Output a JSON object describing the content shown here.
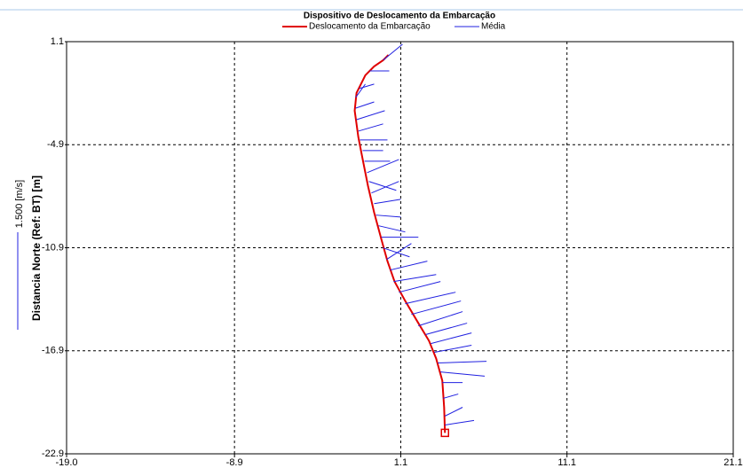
{
  "chart_data": {
    "type": "line",
    "title": "Dispositivo de Deslocamento da Embarcação",
    "y_label": "Distancia Norte (Ref: BT) [m]",
    "scale_label": "1.500 [m/s]",
    "xlim": [
      -19.0,
      21.1
    ],
    "xticks": [
      {
        "value": -19,
        "label": "-19.0"
      },
      -8.9,
      1.1,
      11.1,
      21.1
    ],
    "ylim": [
      -22.9,
      1.1
    ],
    "yticks": [
      1.1,
      -4.9,
      -10.9,
      -16.9,
      -22.9
    ],
    "grid": true,
    "series": [
      {
        "name": "Deslocamento da Embarcação",
        "color": "#e00000",
        "x": [
          3.76,
          3.71,
          3.6,
          3.23,
          2.8,
          2.16,
          1.37,
          0.73,
          0.3,
          -0.07,
          -0.5,
          -0.87,
          -1.19,
          -1.45,
          -1.67,
          -1.56,
          -1.03,
          -0.5,
          0.04,
          0.36
        ],
        "y": [
          -21.68,
          -20.19,
          -18.64,
          -17.35,
          -16.32,
          -15.29,
          -14.0,
          -12.87,
          -11.68,
          -10.39,
          -8.85,
          -7.3,
          -5.75,
          -4.46,
          -2.92,
          -1.89,
          -0.86,
          -0.34,
          0.02,
          0.33
        ]
      },
      {
        "name": "Média",
        "color": "#2020e0",
        "x": [
          3.76,
          3.76,
          3.65,
          3.6,
          3.49,
          3.33,
          3.12,
          2.91,
          2.59,
          2.16,
          1.74,
          1.37,
          0.99,
          0.67,
          0.46,
          0.25,
          0.04,
          -0.07,
          -0.23,
          -0.39,
          -0.5,
          -0.66,
          -0.81,
          -0.92,
          -1.08,
          -1.19,
          -1.35,
          -1.45,
          -1.56,
          -1.61,
          -1.61,
          -1.4,
          -0.76,
          0.04
        ],
        "y": [
          -21.22,
          -20.7,
          -19.67,
          -18.75,
          -18.13,
          -17.61,
          -16.99,
          -16.48,
          -15.96,
          -15.45,
          -14.78,
          -14.16,
          -13.49,
          -12.87,
          -12.2,
          -11.58,
          -10.91,
          -10.29,
          -9.62,
          -9.0,
          -8.33,
          -7.71,
          -7.04,
          -6.53,
          -5.86,
          -5.24,
          -4.62,
          -4.11,
          -3.44,
          -2.77,
          -2.15,
          -1.63,
          -0.6,
          0.02
        ],
        "x_end": [
          5.51,
          4.82,
          4.56,
          4.82,
          6.15,
          6.26,
          5.36,
          5.36,
          5.09,
          4.82,
          4.72,
          4.4,
          3.49,
          3.23,
          2.7,
          1.74,
          1.63,
          2.16,
          1.37,
          1.1,
          1.1,
          0.99,
          0.83,
          0.99,
          0.46,
          0.04,
          0.3,
          0.04,
          0.14,
          -0.5,
          -1.03,
          -0.5,
          0.41,
          1.21
        ],
        "y_end": [
          -20.96,
          -20.19,
          -19.42,
          -18.75,
          -18.38,
          -17.51,
          -16.58,
          -15.86,
          -15.29,
          -14.62,
          -14.0,
          -13.49,
          -12.87,
          -12.46,
          -11.68,
          -10.65,
          -11.43,
          -10.29,
          -9.98,
          -9.11,
          -8.08,
          -7.04,
          -7.56,
          -5.76,
          -5.86,
          -5.24,
          -4.62,
          -3.69,
          -2.92,
          -2.41,
          -1.37,
          -1.37,
          -0.6,
          0.95
        ]
      }
    ]
  }
}
